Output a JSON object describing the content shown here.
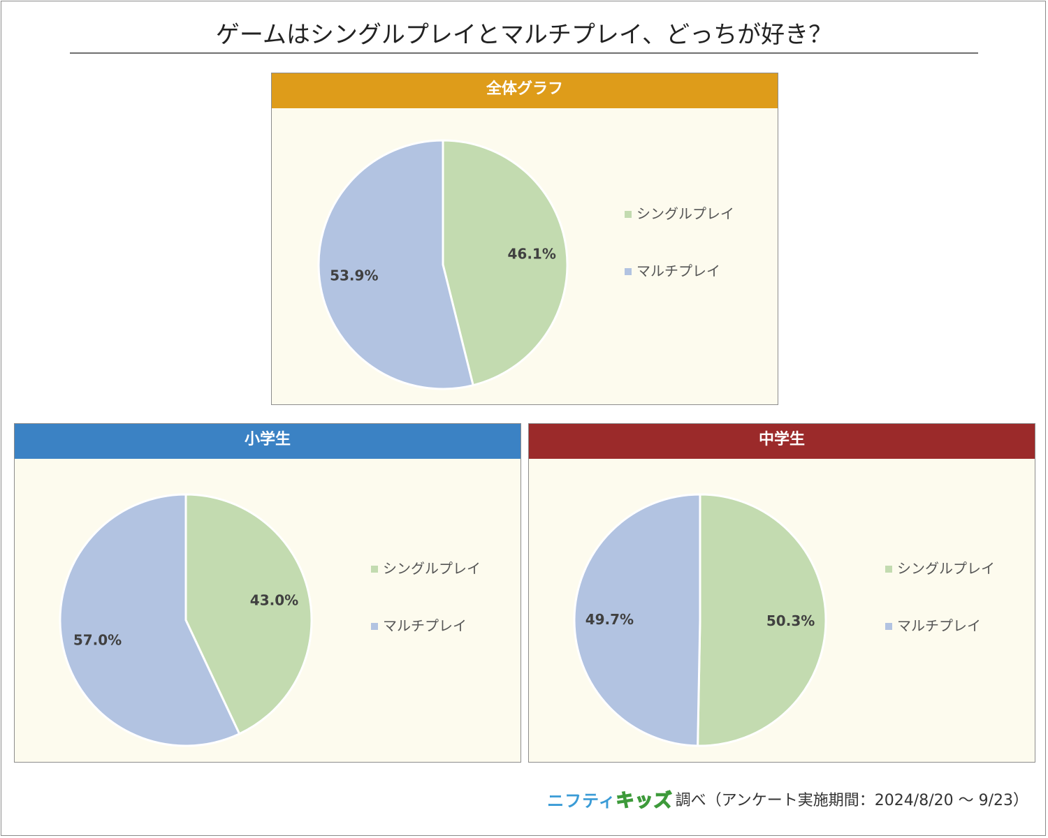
{
  "title": "ゲームはシングルプレイとマルチプレイ、どっちが好き？",
  "colors": {
    "single": "#c3dbb0",
    "multi": "#b2c3e1",
    "panel_bg": "#fdfbee",
    "header_overall": "#de9c1a",
    "header_elementary": "#3b82c4",
    "header_junior": "#9b2a2a"
  },
  "chart_data": [
    {
      "type": "pie",
      "panel_title": "全体グラフ",
      "slices": [
        {
          "name": "シングルプレイ",
          "value": 46.1,
          "label": "46.1%"
        },
        {
          "name": "マルチプレイ",
          "value": 53.9,
          "label": "53.9%"
        }
      ],
      "legend": [
        "シングルプレイ",
        "マルチプレイ"
      ]
    },
    {
      "type": "pie",
      "panel_title": "小学生",
      "slices": [
        {
          "name": "シングルプレイ",
          "value": 43.0,
          "label": "43.0%"
        },
        {
          "name": "マルチプレイ",
          "value": 57.0,
          "label": "57.0%"
        }
      ],
      "legend": [
        "シングルプレイ",
        "マルチプレイ"
      ]
    },
    {
      "type": "pie",
      "panel_title": "中学生",
      "slices": [
        {
          "name": "シングルプレイ",
          "value": 50.3,
          "label": "50.3%"
        },
        {
          "name": "マルチプレイ",
          "value": 49.7,
          "label": "49.7%"
        }
      ],
      "legend": [
        "シングルプレイ",
        "マルチプレイ"
      ]
    }
  ],
  "footer": {
    "logo_part1": "ニフティ",
    "logo_part2": "キッズ",
    "text": "調べ（アンケート実施期間：2024/8/20 ～ 9/23）"
  }
}
